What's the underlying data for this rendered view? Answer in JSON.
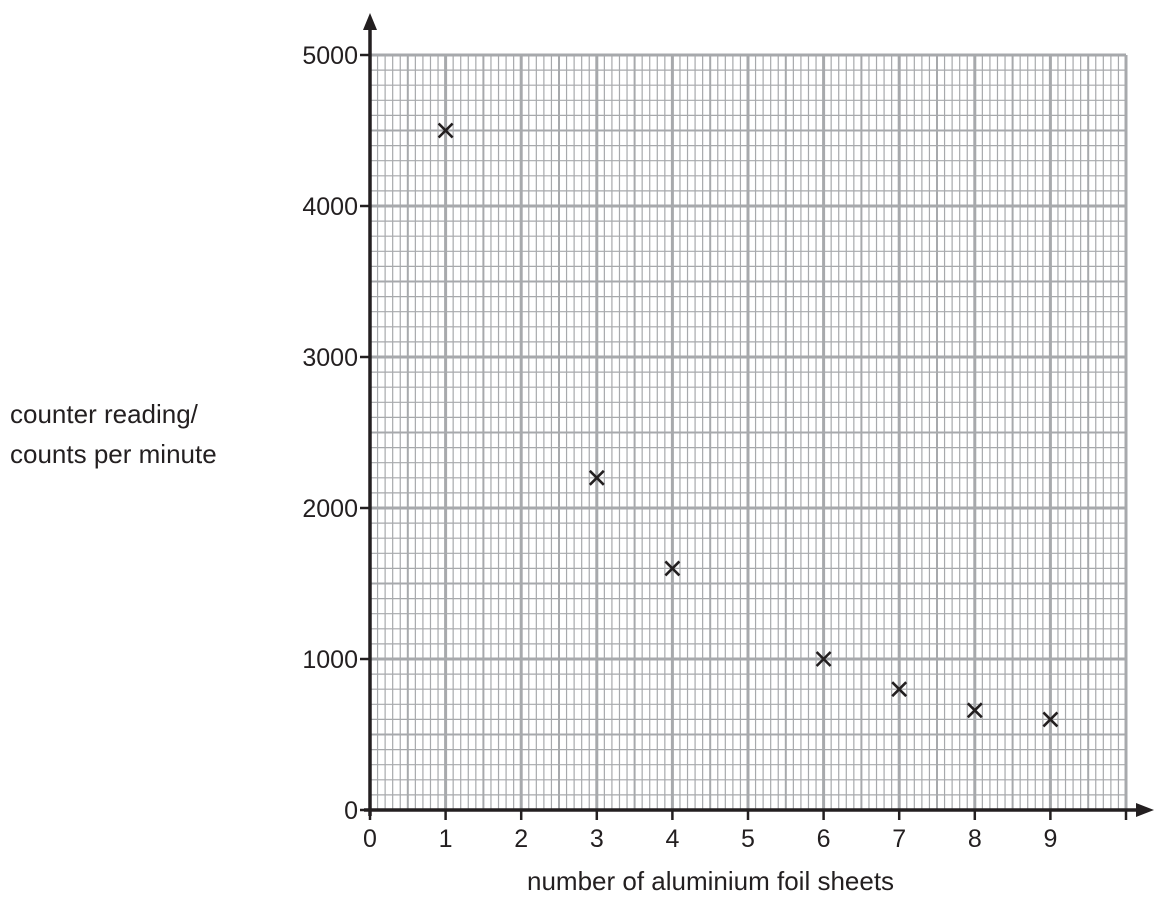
{
  "chart_data": {
    "type": "scatter",
    "title": "",
    "xlabel": "number of aluminium foil sheets",
    "ylabel_lines": [
      "counter reading/",
      "counts per minute"
    ],
    "xlim": [
      0,
      10
    ],
    "ylim": [
      0,
      5000
    ],
    "x_ticks": [
      "0",
      "1",
      "2",
      "3",
      "4",
      "5",
      "6",
      "7",
      "8",
      "9"
    ],
    "y_ticks": [
      "0",
      "1000",
      "2000",
      "3000",
      "4000",
      "5000"
    ],
    "grid": true,
    "marker": "cross",
    "x": [
      1,
      3,
      4,
      6,
      7,
      8,
      9
    ],
    "y": [
      4500,
      2200,
      1600,
      1000,
      800,
      660,
      600
    ]
  }
}
